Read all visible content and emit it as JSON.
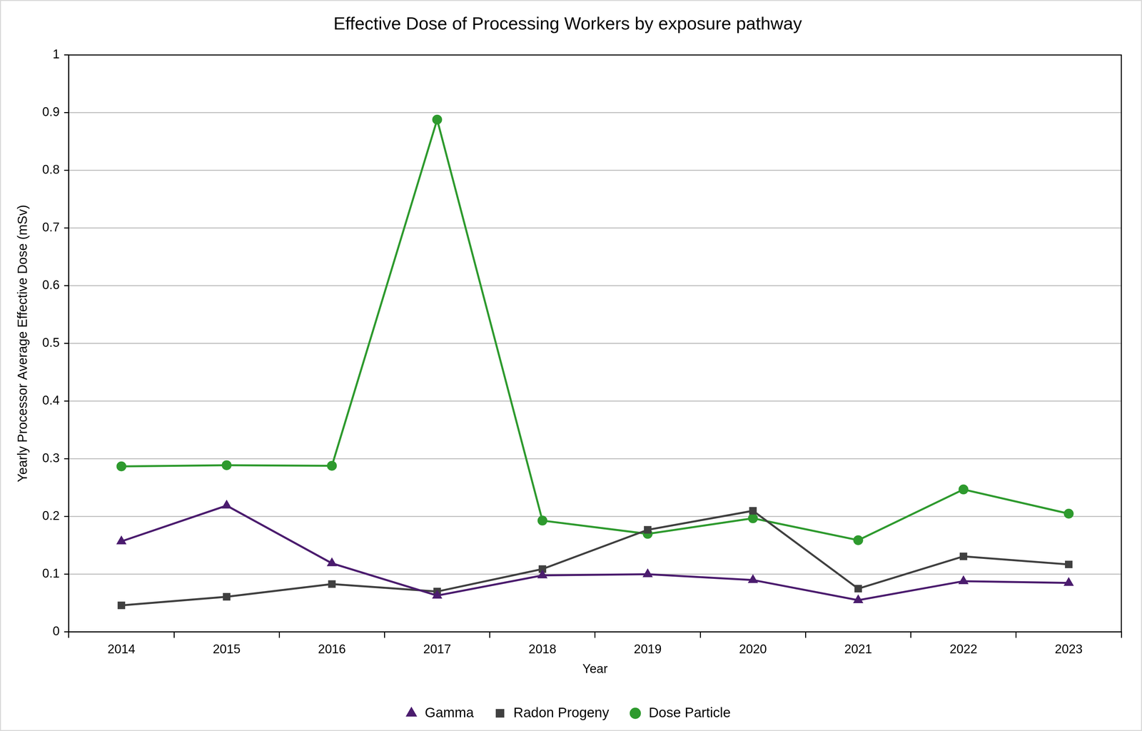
{
  "chart_data": {
    "type": "line",
    "title": "Effective Dose of Processing Workers by exposure pathway",
    "x_label": "Year",
    "y_label": "Yearly Processor Average Effective Dose (mSv)",
    "categories": [
      "2014",
      "2015",
      "2016",
      "2017",
      "2018",
      "2019",
      "2020",
      "2021",
      "2022",
      "2023"
    ],
    "series": [
      {
        "name": "Gamma",
        "color": "#4b1c6e",
        "marker": "triangle",
        "values": [
          0.157,
          0.219,
          0.119,
          0.063,
          0.098,
          0.1,
          0.09,
          0.055,
          0.088,
          0.085
        ]
      },
      {
        "name": "Radon Progeny",
        "color": "#404040",
        "marker": "square",
        "values": [
          0.046,
          0.061,
          0.083,
          0.07,
          0.109,
          0.177,
          0.21,
          0.075,
          0.131,
          0.117
        ]
      },
      {
        "name": "Dose Particle",
        "color": "#2e9a2e",
        "marker": "circle",
        "values": [
          0.287,
          0.289,
          0.288,
          0.888,
          0.193,
          0.17,
          0.197,
          0.159,
          0.247,
          0.205
        ]
      }
    ],
    "ylim": [
      0,
      1
    ],
    "yticks": [
      0,
      0.1,
      0.2,
      0.3,
      0.4,
      0.5,
      0.6,
      0.7,
      0.8,
      0.9,
      1
    ],
    "grid": true,
    "legend": "bottom"
  }
}
